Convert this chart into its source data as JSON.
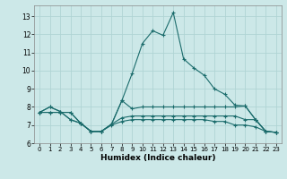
{
  "title": "",
  "xlabel": "Humidex (Indice chaleur)",
  "bg_color": "#cce8e8",
  "grid_color": "#b0d4d4",
  "line_color": "#1a6b6b",
  "xlim": [
    -0.5,
    23.5
  ],
  "ylim": [
    6.0,
    13.6
  ],
  "yticks": [
    6,
    7,
    8,
    9,
    10,
    11,
    12,
    13
  ],
  "xticks": [
    0,
    1,
    2,
    3,
    4,
    5,
    6,
    7,
    8,
    9,
    10,
    11,
    12,
    13,
    14,
    15,
    16,
    17,
    18,
    19,
    20,
    21,
    22,
    23
  ],
  "line1_x": [
    0,
    1,
    2,
    3,
    4,
    5,
    6,
    7,
    8,
    9,
    10,
    11,
    12,
    13,
    14,
    15,
    16,
    17,
    18,
    19,
    20,
    21,
    22,
    23
  ],
  "line1_y": [
    7.7,
    8.0,
    7.75,
    7.3,
    7.1,
    6.65,
    6.65,
    7.05,
    8.35,
    9.85,
    11.5,
    12.2,
    11.95,
    13.2,
    10.65,
    10.15,
    9.75,
    9.0,
    8.7,
    8.1,
    8.05,
    7.3,
    6.65,
    6.6
  ],
  "line2_x": [
    0,
    1,
    2,
    3,
    4,
    5,
    6,
    7,
    8,
    9,
    10,
    11,
    12,
    13,
    14,
    15,
    16,
    17,
    18,
    19,
    20,
    21,
    22,
    23
  ],
  "line2_y": [
    7.7,
    8.0,
    7.75,
    7.3,
    7.1,
    6.65,
    6.65,
    7.05,
    8.35,
    7.9,
    8.0,
    8.0,
    8.0,
    8.0,
    8.0,
    8.0,
    8.0,
    8.0,
    8.0,
    8.0,
    8.05,
    7.3,
    6.65,
    6.6
  ],
  "line3_x": [
    0,
    1,
    2,
    3,
    4,
    5,
    6,
    7,
    8,
    9,
    10,
    11,
    12,
    13,
    14,
    15,
    16,
    17,
    18,
    19,
    20,
    21,
    22,
    23
  ],
  "line3_y": [
    7.7,
    7.7,
    7.7,
    7.7,
    7.1,
    6.65,
    6.65,
    7.05,
    7.4,
    7.5,
    7.5,
    7.5,
    7.5,
    7.5,
    7.5,
    7.5,
    7.5,
    7.5,
    7.5,
    7.5,
    7.3,
    7.3,
    6.65,
    6.6
  ],
  "line4_x": [
    0,
    1,
    2,
    3,
    4,
    5,
    6,
    7,
    8,
    9,
    10,
    11,
    12,
    13,
    14,
    15,
    16,
    17,
    18,
    19,
    20,
    21,
    22,
    23
  ],
  "line4_y": [
    7.7,
    7.7,
    7.7,
    7.7,
    7.1,
    6.65,
    6.65,
    7.0,
    7.2,
    7.3,
    7.3,
    7.3,
    7.3,
    7.3,
    7.3,
    7.3,
    7.3,
    7.2,
    7.2,
    7.0,
    7.0,
    6.9,
    6.65,
    6.6
  ]
}
